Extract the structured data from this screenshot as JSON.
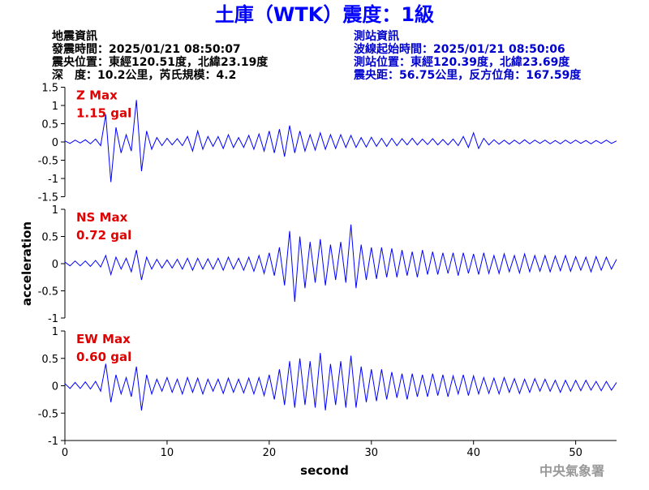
{
  "header": {
    "title": "土庫（WTK）震度：1級",
    "left": [
      "地震資訊",
      "發震時間：2025/01/21 08:50:07",
      "震央位置：東經120.51度，北緯23.19度",
      "深　度：10.2公里，芮氏規模：4.2"
    ],
    "right": [
      "測站資訊",
      "波線起始時間：2025/01/21 08:50:06",
      "測站位置：東經120.39度，北緯23.69度",
      "震央距：56.75公里，反方位角：167.59度"
    ],
    "footer": "中央氣象署"
  },
  "chart_data": [
    {
      "type": "line",
      "annotations": [
        "Z Max",
        "1.15 gal"
      ],
      "annotation_color": "#e00000",
      "xlim": [
        0,
        54
      ],
      "ylim": [
        -1.5,
        1.5
      ],
      "yticks": [
        -1.5,
        -1,
        -0.5,
        0,
        0.5,
        1,
        1.5
      ],
      "x": [
        0,
        0.5,
        1,
        1.5,
        2,
        2.5,
        3,
        3.5,
        4,
        4.5,
        5,
        5.5,
        6,
        6.5,
        7,
        7.5,
        8,
        8.5,
        9,
        9.5,
        10,
        10.5,
        11,
        11.5,
        12,
        12.5,
        13,
        13.5,
        14,
        14.5,
        15,
        15.5,
        16,
        16.5,
        17,
        17.5,
        18,
        18.5,
        19,
        19.5,
        20,
        20.5,
        21,
        21.5,
        22,
        22.5,
        23,
        23.5,
        24,
        24.5,
        25,
        25.5,
        26,
        26.5,
        27,
        27.5,
        28,
        28.5,
        29,
        29.5,
        30,
        30.5,
        31,
        31.5,
        32,
        32.5,
        33,
        33.5,
        34,
        34.5,
        35,
        35.5,
        36,
        36.5,
        37,
        37.5,
        38,
        38.5,
        39,
        39.5,
        40,
        40.5,
        41,
        41.5,
        42,
        42.5,
        43,
        43.5,
        44,
        44.5,
        45,
        45.5,
        46,
        46.5,
        47,
        47.5,
        48,
        48.5,
        49,
        49.5,
        50,
        50.5,
        51,
        51.5,
        52,
        52.5,
        53,
        53.5,
        54
      ],
      "series": [
        {
          "color": "#0000ff",
          "values": [
            0.03,
            -0.04,
            0.05,
            -0.03,
            0.06,
            -0.05,
            0.08,
            -0.1,
            0.75,
            -1.1,
            0.4,
            -0.3,
            0.2,
            -0.25,
            1.15,
            -0.8,
            0.3,
            -0.2,
            0.12,
            -0.1,
            0.1,
            -0.08,
            0.09,
            -0.1,
            0.15,
            -0.25,
            0.3,
            -0.2,
            0.15,
            -0.12,
            0.15,
            -0.18,
            0.2,
            -0.15,
            0.12,
            -0.15,
            0.18,
            -0.2,
            0.22,
            -0.25,
            0.3,
            -0.3,
            0.35,
            -0.4,
            0.45,
            -0.3,
            0.3,
            -0.25,
            0.2,
            -0.22,
            0.25,
            -0.2,
            0.2,
            -0.18,
            0.2,
            -0.15,
            0.18,
            -0.15,
            0.12,
            -0.14,
            0.13,
            -0.12,
            0.1,
            -0.12,
            0.1,
            -0.1,
            0.09,
            -0.08,
            0.1,
            -0.08,
            0.08,
            -0.07,
            0.09,
            -0.08,
            0.07,
            -0.08,
            0.08,
            -0.1,
            0.15,
            -0.15,
            0.25,
            -0.18,
            0.1,
            -0.08,
            0.06,
            -0.06,
            0.05,
            -0.06,
            0.05,
            -0.05,
            0.06,
            -0.05,
            0.05,
            -0.04,
            0.05,
            -0.05,
            0.04,
            -0.05,
            0.05,
            -0.04,
            0.05,
            -0.04,
            0.04,
            -0.05,
            0.04,
            -0.04,
            0.05,
            -0.04,
            0.03
          ]
        }
      ]
    },
    {
      "type": "line",
      "annotations": [
        "NS Max",
        "0.72 gal"
      ],
      "annotation_color": "#e00000",
      "ylabel": "acceleration",
      "xlim": [
        0,
        54
      ],
      "ylim": [
        -1,
        1
      ],
      "yticks": [
        -1,
        -0.5,
        0,
        0.5,
        1
      ],
      "x": [
        0,
        0.5,
        1,
        1.5,
        2,
        2.5,
        3,
        3.5,
        4,
        4.5,
        5,
        5.5,
        6,
        6.5,
        7,
        7.5,
        8,
        8.5,
        9,
        9.5,
        10,
        10.5,
        11,
        11.5,
        12,
        12.5,
        13,
        13.5,
        14,
        14.5,
        15,
        15.5,
        16,
        16.5,
        17,
        17.5,
        18,
        18.5,
        19,
        19.5,
        20,
        20.5,
        21,
        21.5,
        22,
        22.5,
        23,
        23.5,
        24,
        24.5,
        25,
        25.5,
        26,
        26.5,
        27,
        27.5,
        28,
        28.5,
        29,
        29.5,
        30,
        30.5,
        31,
        31.5,
        32,
        32.5,
        33,
        33.5,
        34,
        34.5,
        35,
        35.5,
        36,
        36.5,
        37,
        37.5,
        38,
        38.5,
        39,
        39.5,
        40,
        40.5,
        41,
        41.5,
        42,
        42.5,
        43,
        43.5,
        44,
        44.5,
        45,
        45.5,
        46,
        46.5,
        47,
        47.5,
        48,
        48.5,
        49,
        49.5,
        50,
        50.5,
        51,
        51.5,
        52,
        52.5,
        53,
        53.5,
        54
      ],
      "series": [
        {
          "color": "#0000ff",
          "values": [
            0.03,
            -0.04,
            0.05,
            -0.04,
            0.05,
            -0.05,
            0.06,
            -0.06,
            0.15,
            -0.2,
            0.12,
            -0.1,
            0.1,
            -0.15,
            0.25,
            -0.3,
            0.12,
            -0.1,
            0.08,
            -0.08,
            0.07,
            -0.08,
            0.08,
            -0.1,
            0.1,
            -0.12,
            0.1,
            -0.1,
            0.09,
            -0.1,
            0.1,
            -0.12,
            0.12,
            -0.1,
            0.1,
            -0.12,
            0.12,
            -0.14,
            0.15,
            -0.18,
            0.2,
            -0.22,
            0.3,
            -0.4,
            0.6,
            -0.7,
            0.5,
            -0.45,
            0.4,
            -0.35,
            0.45,
            -0.4,
            0.35,
            -0.3,
            0.4,
            -0.35,
            0.72,
            -0.45,
            0.35,
            -0.3,
            0.3,
            -0.28,
            0.3,
            -0.25,
            0.28,
            -0.25,
            0.25,
            -0.22,
            0.22,
            -0.25,
            0.25,
            -0.2,
            0.22,
            -0.2,
            0.2,
            -0.18,
            0.2,
            -0.22,
            0.2,
            -0.18,
            0.18,
            -0.2,
            0.2,
            -0.18,
            0.15,
            -0.18,
            0.18,
            -0.15,
            0.15,
            -0.17,
            0.18,
            -0.15,
            0.15,
            -0.14,
            0.15,
            -0.15,
            0.14,
            -0.13,
            0.15,
            -0.14,
            0.13,
            -0.12,
            0.12,
            -0.15,
            0.13,
            -0.12,
            0.12,
            -0.1,
            0.08
          ]
        }
      ]
    },
    {
      "type": "line",
      "annotations": [
        "EW Max",
        "0.60 gal"
      ],
      "annotation_color": "#e00000",
      "xlabel": "second",
      "xlim": [
        0,
        54
      ],
      "xticks": [
        0,
        10,
        20,
        30,
        40,
        50
      ],
      "ylim": [
        -1,
        1
      ],
      "yticks": [
        -1,
        -0.5,
        0,
        0.5,
        1
      ],
      "x": [
        0,
        0.5,
        1,
        1.5,
        2,
        2.5,
        3,
        3.5,
        4,
        4.5,
        5,
        5.5,
        6,
        6.5,
        7,
        7.5,
        8,
        8.5,
        9,
        9.5,
        10,
        10.5,
        11,
        11.5,
        12,
        12.5,
        13,
        13.5,
        14,
        14.5,
        15,
        15.5,
        16,
        16.5,
        17,
        17.5,
        18,
        18.5,
        19,
        19.5,
        20,
        20.5,
        21,
        21.5,
        22,
        22.5,
        23,
        23.5,
        24,
        24.5,
        25,
        25.5,
        26,
        26.5,
        27,
        27.5,
        28,
        28.5,
        29,
        29.5,
        30,
        30.5,
        31,
        31.5,
        32,
        32.5,
        33,
        33.5,
        34,
        34.5,
        35,
        35.5,
        36,
        36.5,
        37,
        37.5,
        38,
        38.5,
        39,
        39.5,
        40,
        40.5,
        41,
        41.5,
        42,
        42.5,
        43,
        43.5,
        44,
        44.5,
        45,
        45.5,
        46,
        46.5,
        47,
        47.5,
        48,
        48.5,
        49,
        49.5,
        50,
        50.5,
        51,
        51.5,
        52,
        52.5,
        53,
        53.5,
        54
      ],
      "series": [
        {
          "color": "#0000ff",
          "values": [
            0.04,
            -0.05,
            0.06,
            -0.05,
            0.07,
            -0.06,
            0.08,
            -0.1,
            0.4,
            -0.3,
            0.2,
            -0.15,
            0.15,
            -0.2,
            0.35,
            -0.45,
            0.2,
            -0.15,
            0.12,
            -0.1,
            0.15,
            -0.12,
            0.12,
            -0.15,
            0.15,
            -0.12,
            0.14,
            -0.15,
            0.12,
            -0.1,
            0.12,
            -0.14,
            0.14,
            -0.12,
            0.12,
            -0.13,
            0.14,
            -0.15,
            0.15,
            -0.18,
            0.2,
            -0.25,
            0.3,
            -0.35,
            0.45,
            -0.4,
            0.5,
            -0.35,
            0.45,
            -0.4,
            0.6,
            -0.45,
            0.4,
            -0.35,
            0.45,
            -0.4,
            0.55,
            -0.4,
            0.35,
            -0.3,
            0.3,
            -0.28,
            0.3,
            -0.25,
            0.25,
            -0.22,
            0.22,
            -0.25,
            0.22,
            -0.2,
            0.2,
            -0.2,
            0.22,
            -0.18,
            0.2,
            -0.2,
            0.18,
            -0.15,
            0.2,
            -0.18,
            0.18,
            -0.15,
            0.15,
            -0.14,
            0.14,
            -0.15,
            0.15,
            -0.12,
            0.13,
            -0.14,
            0.12,
            -0.12,
            0.13,
            -0.1,
            0.12,
            -0.1,
            0.1,
            -0.12,
            0.1,
            -0.1,
            0.1,
            -0.09,
            0.1,
            -0.08,
            0.08,
            -0.09,
            0.08,
            -0.08,
            0.06
          ]
        }
      ]
    }
  ]
}
